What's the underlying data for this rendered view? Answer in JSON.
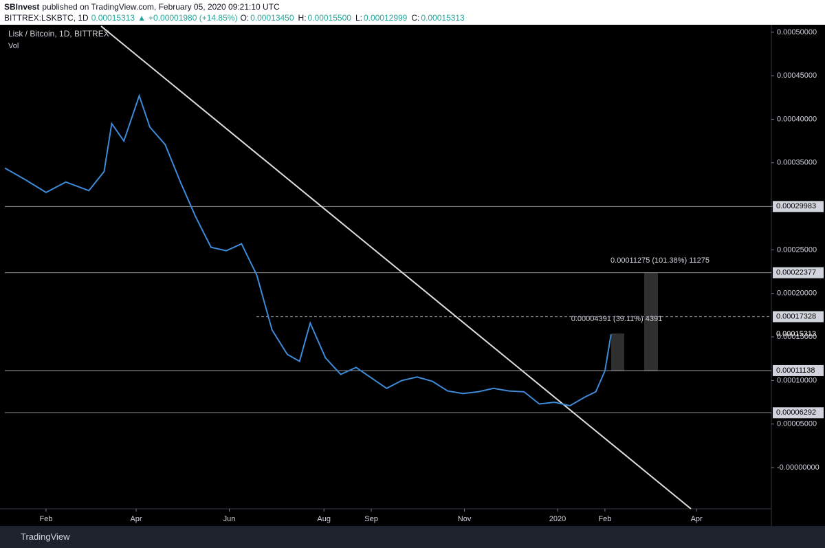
{
  "header": {
    "publisher": "SBInvest",
    "published": "published on TradingView.com, February 05, 2020 09:21:10 UTC",
    "symbol": "BITTREX:LSKBTC, 1D",
    "last": "0.00015313",
    "arrow": "▲",
    "change": "+0.00001980 (+14.85%)",
    "ohlc": [
      {
        "key": "O:",
        "value": "0.00013450"
      },
      {
        "key": "H:",
        "value": "0.00015500"
      },
      {
        "key": "L:",
        "value": "0.00012999"
      },
      {
        "key": "C:",
        "value": "0.00015313"
      }
    ]
  },
  "chart_data": {
    "type": "line",
    "title": "Lisk / Bitcoin, 1D, BITTREX",
    "subtitle": "Vol",
    "color": "#3d8bd9",
    "x": [
      0,
      14,
      27,
      40,
      55,
      65,
      70,
      78,
      88,
      95,
      105,
      115,
      125,
      135,
      145,
      155,
      165,
      175,
      185,
      193,
      200,
      210,
      220,
      230,
      240,
      250,
      260,
      270,
      280,
      290,
      300,
      310,
      320,
      330,
      340,
      350,
      360,
      370,
      380,
      387,
      393,
      397
    ],
    "values": [
      0.000344,
      0.00033,
      0.000316,
      0.000328,
      0.000318,
      0.00034,
      0.000395,
      0.000375,
      0.000427,
      0.000391,
      0.000371,
      0.000328,
      0.000288,
      0.000253,
      0.000249,
      0.000257,
      0.000221,
      0.000158,
      0.00013,
      0.000122,
      0.000166,
      0.000126,
      0.000107,
      0.000115,
      0.000103,
      9.1e-05,
      0.0001,
      0.000104,
      9.9e-05,
      8.8e-05,
      8.5e-05,
      8.7e-05,
      9.1e-05,
      8.8e-05,
      8.7e-05,
      7.3e-05,
      7.5e-05,
      7.1e-05,
      8.1e-05,
      8.7e-05,
      0.000111,
      0.000153
    ],
    "xlim": [
      0,
      502
    ],
    "xticks": [
      {
        "value": 27,
        "label": "Feb"
      },
      {
        "value": 86,
        "label": "Apr"
      },
      {
        "value": 147,
        "label": "Jun"
      },
      {
        "value": 209,
        "label": "Aug"
      },
      {
        "value": 240,
        "label": "Sep"
      },
      {
        "value": 301,
        "label": "Nov"
      },
      {
        "value": 362,
        "label": "2020"
      },
      {
        "value": 393,
        "label": "Feb"
      },
      {
        "value": 453,
        "label": "Apr"
      }
    ],
    "ylim": [
      -4.74e-05,
      0.000507
    ],
    "yticks": [
      {
        "value": 0.0005,
        "label": "0.00050000"
      },
      {
        "value": 0.00045,
        "label": "0.00045000"
      },
      {
        "value": 0.0004,
        "label": "0.00040000"
      },
      {
        "value": 0.00035,
        "label": "0.00035000"
      },
      {
        "value": 0.0003,
        "label": "0.00030000"
      },
      {
        "value": 0.00025,
        "label": "0.00025000"
      },
      {
        "value": 0.0002,
        "label": "0.00020000"
      },
      {
        "value": 0.00015,
        "label": "0.00015000"
      },
      {
        "value": 0.0001,
        "label": "0.00010000"
      },
      {
        "value": 5e-05,
        "label": "0.00005000"
      },
      {
        "value": 0,
        "label": "-0.00000000"
      }
    ],
    "levels": [
      0.00029983,
      0.00022377,
      0.00017328,
      0.00011138,
      6.292e-05
    ],
    "last_price": 0.00015313,
    "annotations": [
      "0.00011275 (101.38%) 11275",
      "0.00004391 (39.11%) 4391"
    ]
  },
  "footer": {
    "brand": "TradingView"
  }
}
